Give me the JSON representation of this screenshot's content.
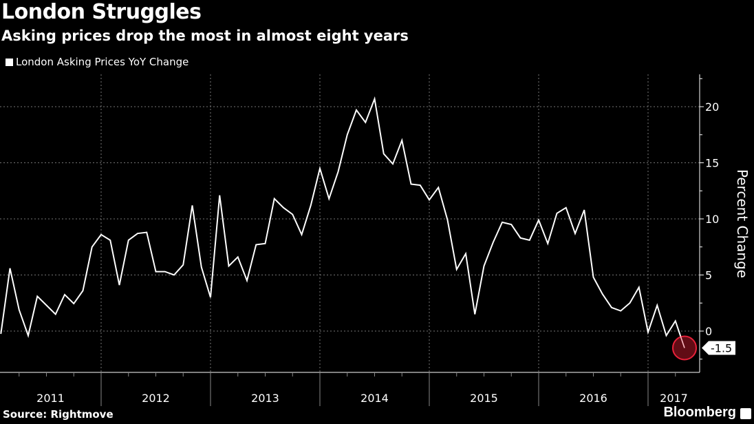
{
  "chart_data": {
    "type": "line",
    "title": "London Struggles",
    "subtitle": "Asking prices drop the most in almost eight years",
    "ylabel": "Percent Change",
    "xlabel": "",
    "ylim": [
      -3.7,
      22.9
    ],
    "yticks": [
      0,
      5,
      10,
      15,
      20
    ],
    "xtick_labels": [
      "2011",
      "2012",
      "2013",
      "2014",
      "2015",
      "2016",
      "2017"
    ],
    "grid": true,
    "legend_placement": "top-left",
    "start_month": "2011-02",
    "series": [
      {
        "name": "London Asking Prices YoY Change",
        "color": "#ffffff",
        "values": [
          -0.25,
          5.6,
          1.9,
          -0.4,
          3.1,
          2.3,
          1.5,
          3.25,
          2.45,
          3.6,
          7.5,
          8.6,
          8.1,
          4.1,
          8.1,
          8.7,
          8.8,
          5.3,
          5.3,
          5.0,
          5.9,
          11.2,
          5.7,
          3.0,
          12.1,
          5.8,
          6.6,
          4.5,
          7.7,
          7.8,
          11.8,
          11.0,
          10.4,
          8.6,
          11.2,
          14.5,
          11.8,
          14.2,
          17.5,
          19.7,
          18.6,
          20.7,
          15.8,
          14.9,
          17.0,
          13.1,
          13.0,
          11.7,
          12.8,
          9.9,
          5.5,
          6.9,
          1.5,
          5.8,
          7.9,
          9.7,
          9.5,
          8.3,
          8.1,
          9.9,
          7.8,
          10.5,
          11.0,
          8.7,
          10.8,
          4.8,
          3.3,
          2.1,
          1.8,
          2.5,
          3.9,
          -0.1,
          2.3,
          -0.4,
          0.9,
          -1.5
        ]
      }
    ],
    "annotation": {
      "label": "-1.5",
      "highlight_color": "#e8213a"
    }
  },
  "footer": {
    "source": "Source: Rightmove",
    "brand": "Bloomberg"
  }
}
